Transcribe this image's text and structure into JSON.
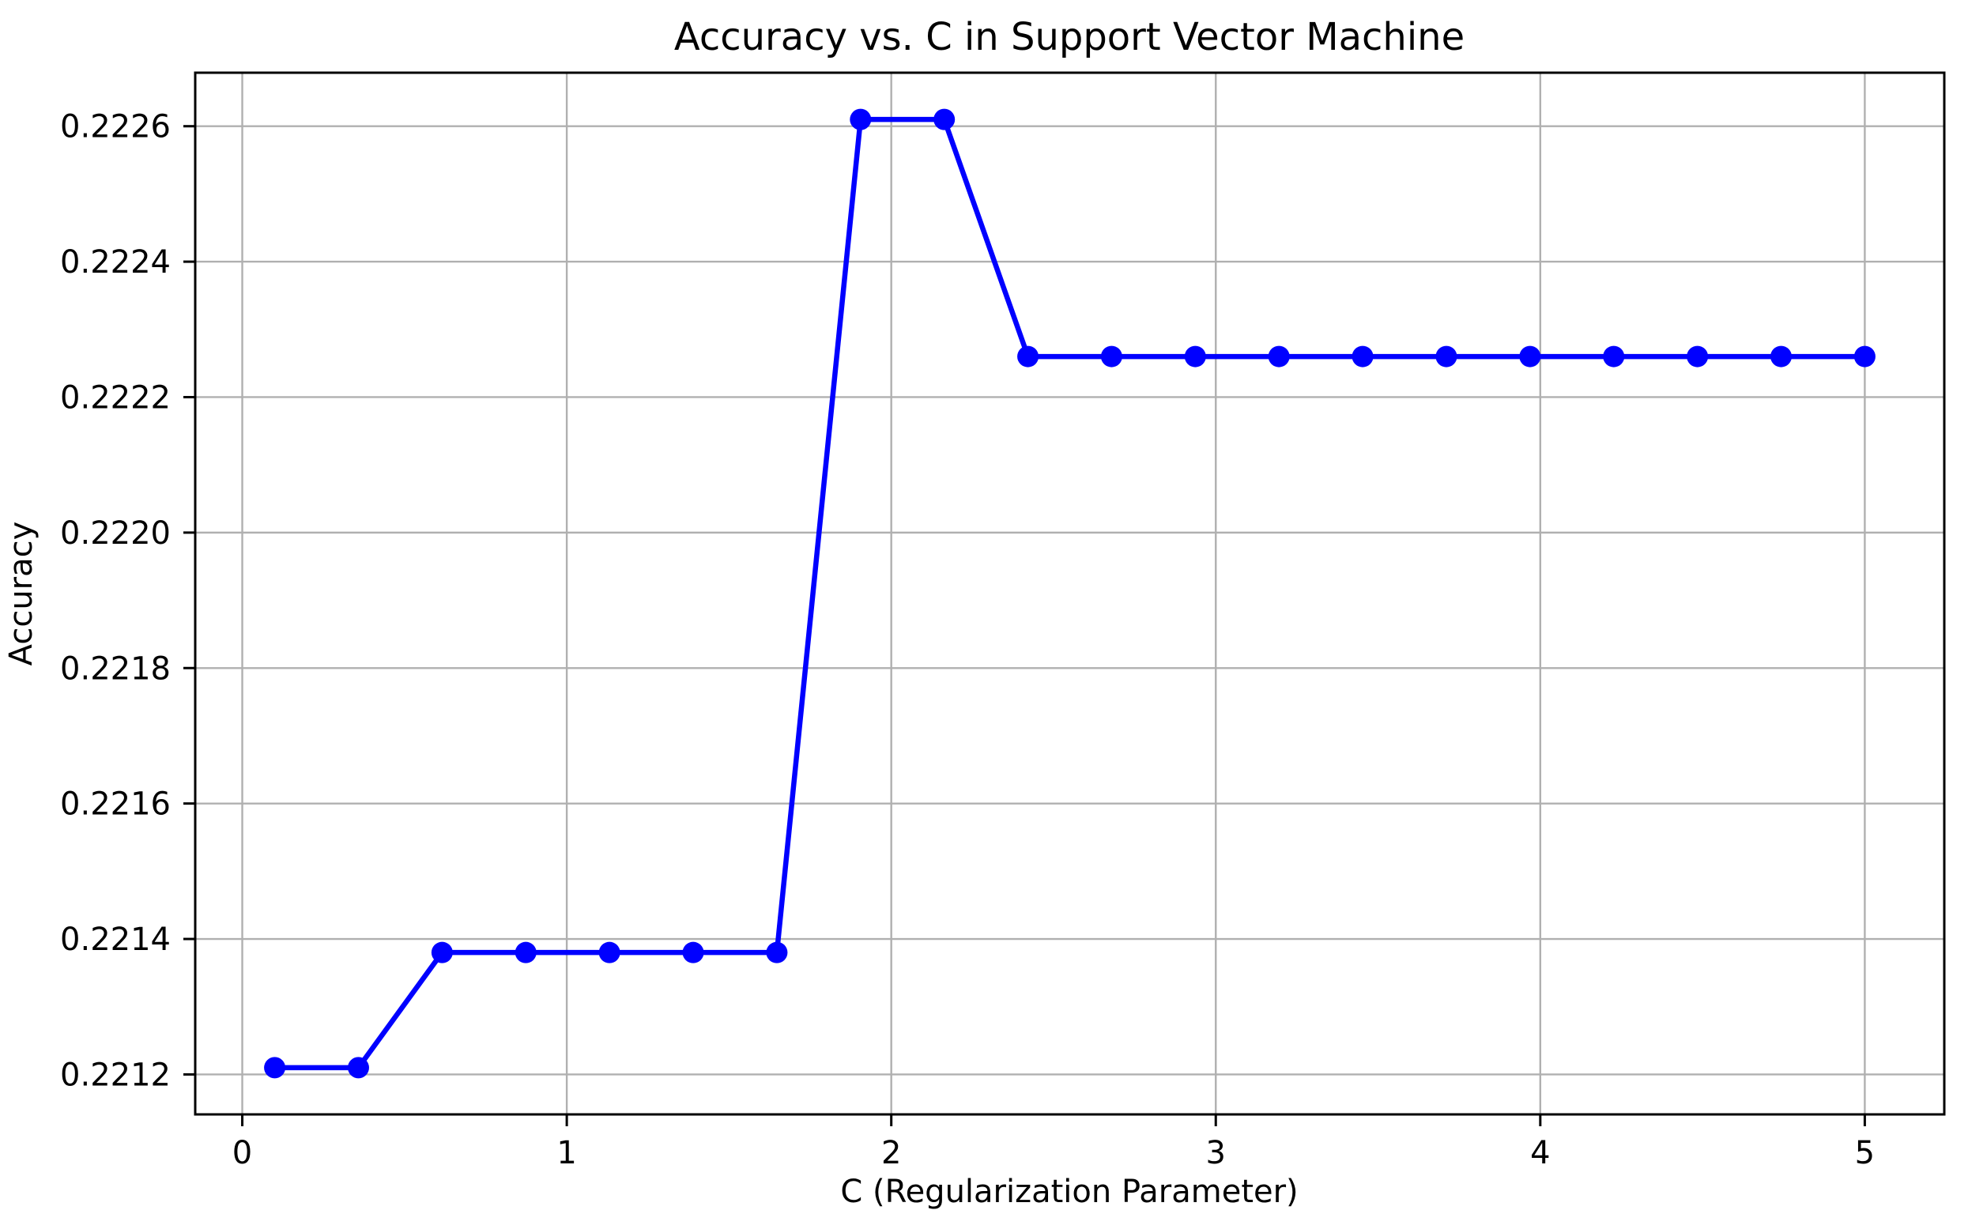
{
  "chart_data": {
    "type": "line",
    "title": "Accuracy vs. C in Support Vector Machine",
    "xlabel": "C (Regularization Parameter)",
    "ylabel": "Accuracy",
    "x": [
      0.1,
      0.3579,
      0.6158,
      0.8737,
      1.1316,
      1.3895,
      1.6474,
      1.9053,
      2.1632,
      2.4211,
      2.6789,
      2.9368,
      3.1947,
      3.4526,
      3.7105,
      3.9684,
      4.2263,
      4.4842,
      4.7421,
      5.0
    ],
    "y": [
      0.22121,
      0.22121,
      0.22138,
      0.22138,
      0.22138,
      0.22138,
      0.22138,
      0.22261,
      0.22261,
      0.22226,
      0.22226,
      0.22226,
      0.22226,
      0.22226,
      0.22226,
      0.22226,
      0.22226,
      0.22226,
      0.22226,
      0.22226
    ],
    "x_ticks": [
      0,
      1,
      2,
      3,
      4,
      5
    ],
    "y_ticks": [
      0.2212,
      0.2214,
      0.2216,
      0.2218,
      0.222,
      0.2222,
      0.2224,
      0.2226
    ],
    "y_tick_decimals": 4,
    "xlim": [
      -0.145,
      5.245
    ],
    "ylim": [
      0.221141,
      0.222679
    ],
    "grid": true,
    "legend_position": "none",
    "line_color": "#0000ff",
    "marker": "o",
    "colors": {
      "grid": "#b0b0b0",
      "spine": "#000000",
      "background": "#ffffff",
      "text": "#000000"
    }
  }
}
